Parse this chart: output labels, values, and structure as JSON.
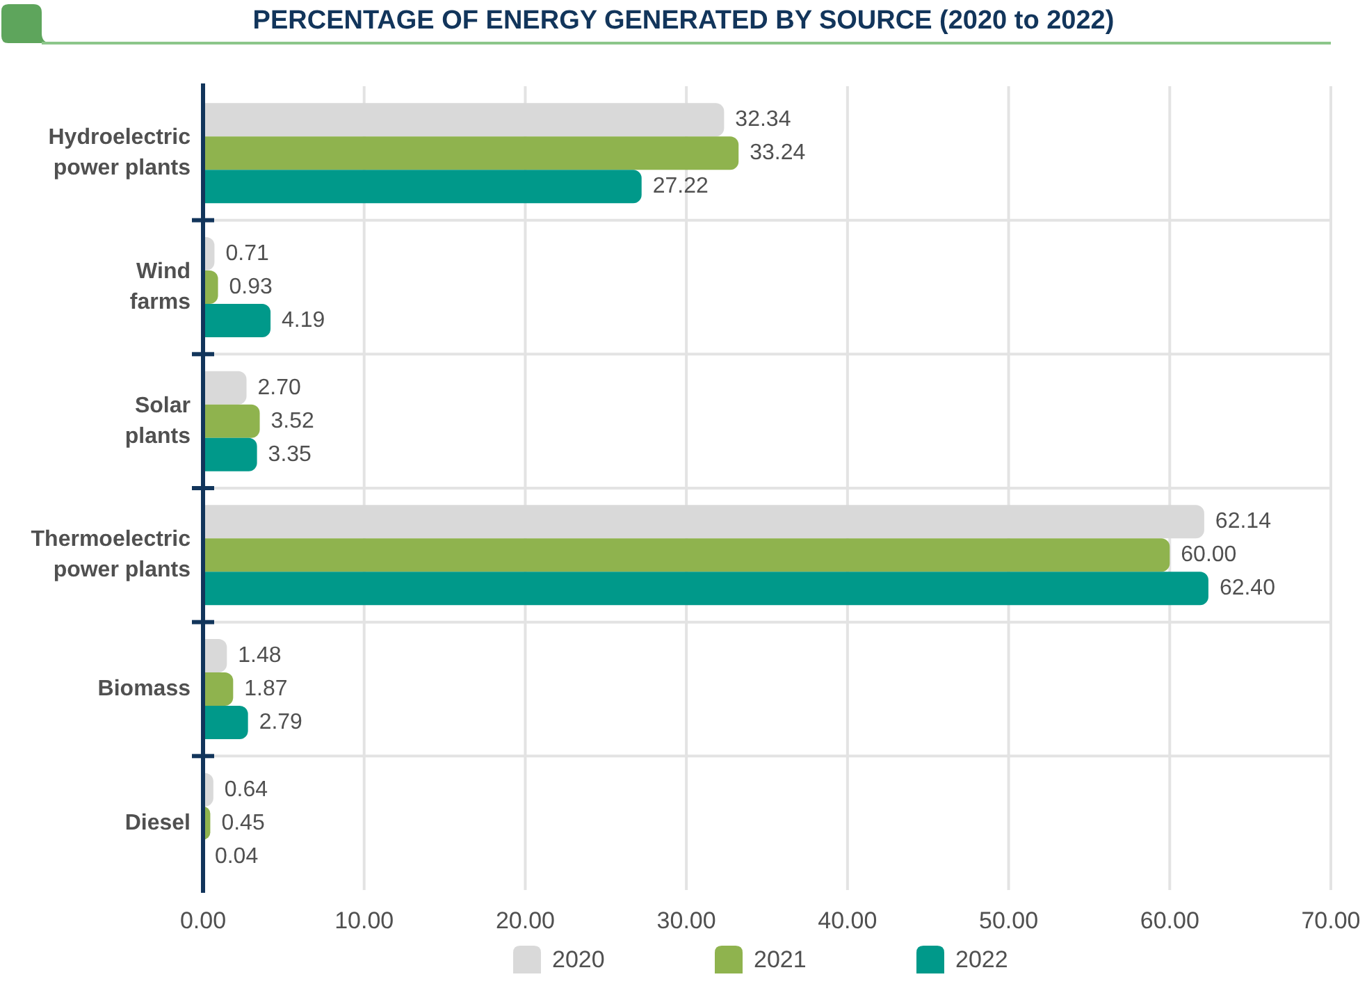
{
  "chart_data": {
    "type": "bar",
    "orientation": "horizontal",
    "title": "PERCENTAGE OF ENERGY GENERATED BY SOURCE (2020 to 2022)",
    "categories": [
      "Hydroelectric power plants",
      "Wind farms",
      "Solar plants",
      "Thermoelectric power plants",
      "Biomass",
      "Diesel"
    ],
    "series": [
      {
        "name": "2020",
        "color": "#d9d9d9",
        "values": [
          32.34,
          0.71,
          2.7,
          62.14,
          1.48,
          0.64
        ],
        "value_labels": [
          "32.34",
          "0.71",
          "2.70",
          "62.14",
          "1.48",
          "0.64"
        ]
      },
      {
        "name": "2021",
        "color": "#8fb34e",
        "values": [
          33.24,
          0.93,
          3.52,
          60.0,
          1.87,
          0.45
        ],
        "value_labels": [
          "33.24",
          "0.93",
          "3.52",
          "60.00",
          "1.87",
          "0.45"
        ]
      },
      {
        "name": "2022",
        "color": "#00998a",
        "values": [
          27.22,
          4.19,
          3.35,
          62.4,
          2.79,
          0.04
        ],
        "value_labels": [
          "27.22",
          "4.19",
          "3.35",
          "62.40",
          "2.79",
          "0.04"
        ]
      }
    ],
    "xlim": [
      0,
      70
    ],
    "xticks": [
      {
        "value": 0,
        "label": "0.00"
      },
      {
        "value": 10,
        "label": "10.00"
      },
      {
        "value": 20,
        "label": "20.00"
      },
      {
        "value": 30,
        "label": "30.00"
      },
      {
        "value": 40,
        "label": "40.00"
      },
      {
        "value": 50,
        "label": "50.00"
      },
      {
        "value": 60,
        "label": "60.00"
      },
      {
        "value": 70,
        "label": "70.00"
      }
    ],
    "grid": true,
    "legend": "bottom"
  }
}
